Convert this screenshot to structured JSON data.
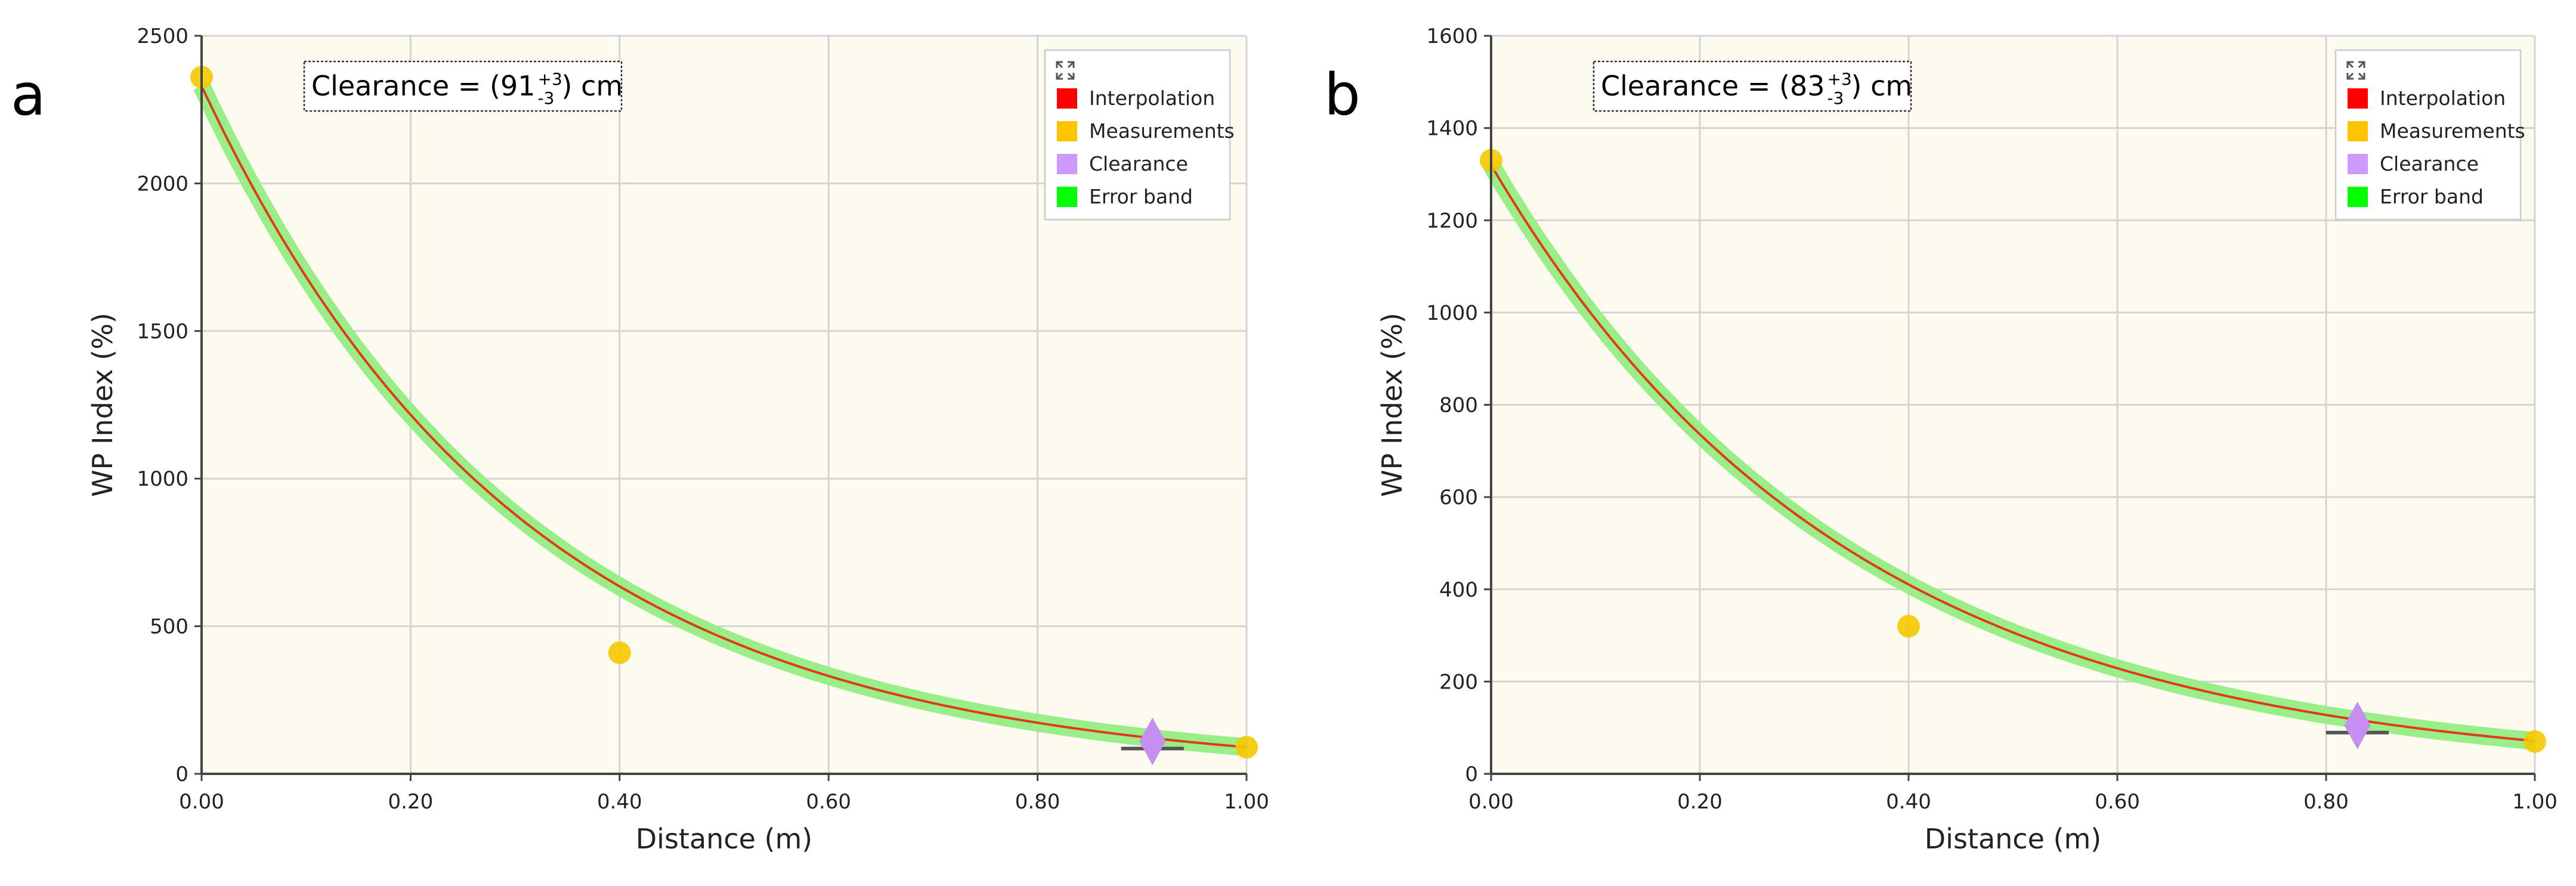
{
  "chart_data": [
    {
      "panel_label": "a",
      "type": "line",
      "xlabel": "Distance (m)",
      "ylabel": "WP Index (%)",
      "xlim": [
        0,
        1
      ],
      "ylim": [
        0,
        2500
      ],
      "x_ticks": [
        0,
        0.2,
        0.4,
        0.6,
        0.8,
        1.0
      ],
      "x_tick_labels": [
        "0.00",
        "0.20",
        "0.40",
        "0.60",
        "0.80",
        "1.00"
      ],
      "y_ticks": [
        0,
        500,
        1000,
        1500,
        2000,
        2500
      ],
      "y_tick_labels": [
        "0",
        "500",
        "1000",
        "1500",
        "2000",
        "2500"
      ],
      "grid": true,
      "annotation": {
        "prefix": "Clearance = (91",
        "sup": "+3",
        "sub": "-3",
        "suffix": ") cm"
      },
      "legend_position": "top-right",
      "legend": [
        {
          "label": "Interpolation",
          "color": "#ff0000"
        },
        {
          "label": "Measurements",
          "color": "#ffc400"
        },
        {
          "label": "Clearance",
          "color": "#cc99ff"
        },
        {
          "label": "Error band",
          "color": "#00ff00"
        }
      ],
      "interpolation": {
        "model": "exponential",
        "a": 2330,
        "k": 3.25
      },
      "measurements": [
        {
          "x": 0.0,
          "y": 2360
        },
        {
          "x": 0.4,
          "y": 410
        },
        {
          "x": 1.0,
          "y": 90
        }
      ],
      "clearance": {
        "x": 0.91,
        "y": 110,
        "x_minus": 0.03,
        "x_plus": 0.03
      },
      "colors": {
        "plot_bg": "#fdfbf0",
        "grid": "#d4d4d4",
        "interpolation": "#e03a1a",
        "band": "#99ee88",
        "measurement": "#f5c800",
        "clearance": "#c58ff2",
        "errorbar": "#555555"
      }
    },
    {
      "panel_label": "b",
      "type": "line",
      "xlabel": "Distance (m)",
      "ylabel": "WP Index (%)",
      "xlim": [
        0,
        1
      ],
      "ylim": [
        0,
        1600
      ],
      "x_ticks": [
        0,
        0.2,
        0.4,
        0.6,
        0.8,
        1.0
      ],
      "x_tick_labels": [
        "0.00",
        "0.20",
        "0.40",
        "0.60",
        "0.80",
        "1.00"
      ],
      "y_ticks": [
        0,
        200,
        400,
        600,
        800,
        1000,
        1200,
        1400,
        1600
      ],
      "y_tick_labels": [
        "0",
        "200",
        "400",
        "600",
        "800",
        "1000",
        "1200",
        "1400",
        "1600"
      ],
      "grid": true,
      "annotation": {
        "prefix": "Clearance = (83",
        "sup": "+3",
        "sub": "-3",
        "suffix": ") cm"
      },
      "legend_position": "top-right",
      "legend": [
        {
          "label": "Interpolation",
          "color": "#ff0000"
        },
        {
          "label": "Measurements",
          "color": "#ffc400"
        },
        {
          "label": "Clearance",
          "color": "#cc99ff"
        },
        {
          "label": "Error band",
          "color": "#00ff00"
        }
      ],
      "interpolation": {
        "model": "exponential",
        "a": 1320,
        "k": 2.92
      },
      "measurements": [
        {
          "x": 0.0,
          "y": 1330
        },
        {
          "x": 0.4,
          "y": 320
        },
        {
          "x": 1.0,
          "y": 70
        }
      ],
      "clearance": {
        "x": 0.83,
        "y": 105,
        "x_minus": 0.03,
        "x_plus": 0.03
      },
      "colors": {
        "plot_bg": "#fdfbf0",
        "grid": "#d4d4d4",
        "interpolation": "#e03a1a",
        "band": "#99ee88",
        "measurement": "#f5c800",
        "clearance": "#c58ff2",
        "errorbar": "#555555"
      }
    }
  ]
}
